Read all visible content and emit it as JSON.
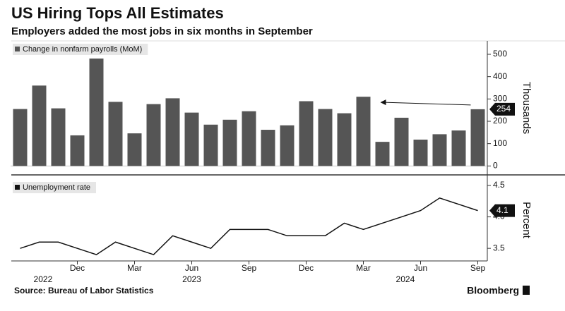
{
  "title": "US Hiring Tops All Estimates",
  "subtitle": "Employers added the most jobs in six months in September",
  "source": "Source: Bureau of Labor Statistics",
  "logo": "Bloomberg",
  "years": [
    "2022",
    "2023",
    "2024"
  ],
  "chart_data": [
    {
      "type": "bar",
      "y_label": "Thousands",
      "categories": [
        null,
        null,
        null,
        "Dec",
        null,
        null,
        "Mar",
        null,
        null,
        "Jun",
        null,
        null,
        "Sep",
        null,
        null,
        "Dec",
        null,
        null,
        "Mar",
        null,
        null,
        "Jun",
        null,
        null,
        "Sep"
      ],
      "series": [
        {
          "name": "Change in nonfarm payrolls (MoM)",
          "color": "#555555",
          "values": [
            255,
            360,
            258,
            137,
            481,
            287,
            146,
            277,
            303,
            239,
            185,
            207,
            245,
            162,
            182,
            290,
            255,
            236,
            310,
            108,
            216,
            118,
            142,
            159,
            254
          ]
        }
      ],
      "ylim": [
        -40,
        560
      ],
      "yticks": [
        0,
        100,
        200,
        300,
        400,
        500
      ]
    },
    {
      "type": "line",
      "y_label": "Percent",
      "categories": [
        null,
        null,
        null,
        "Dec",
        null,
        null,
        "Mar",
        null,
        null,
        "Jun",
        null,
        null,
        "Sep",
        null,
        null,
        "Dec",
        null,
        null,
        "Mar",
        null,
        null,
        "Jun",
        null,
        null,
        "Sep"
      ],
      "series": [
        {
          "name": "Unemployment rate",
          "color": "#111111",
          "values": [
            3.5,
            3.6,
            3.6,
            3.5,
            3.4,
            3.6,
            3.5,
            3.4,
            3.7,
            3.6,
            3.5,
            3.8,
            3.8,
            3.8,
            3.7,
            3.7,
            3.7,
            3.9,
            3.8,
            3.9,
            4.0,
            4.1,
            4.3,
            4.2,
            4.1
          ]
        }
      ],
      "ylim": [
        3.3,
        4.6
      ],
      "yticks": [
        3.5,
        {
          "value": 4,
          "label": "4.0"
        },
        4.5
      ]
    }
  ]
}
